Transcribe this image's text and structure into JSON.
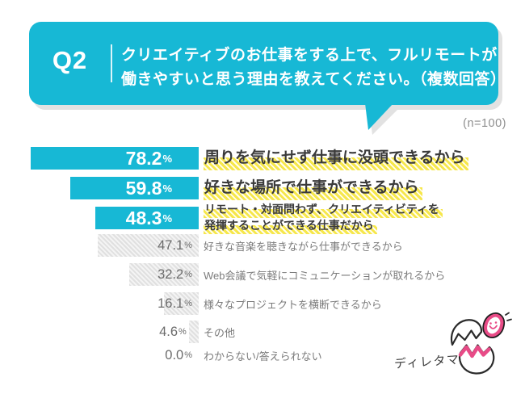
{
  "header": {
    "badge": "Q2",
    "question_line1": "クリエイティブのお仕事をする上で、フルリモートが",
    "question_line2": "働きやすいと思う理由を教えてください。（複数回答）",
    "sample_size": "(n=100)"
  },
  "chart_data": {
    "type": "bar",
    "orientation": "horizontal",
    "value_unit": "%",
    "axis_range": [
      0,
      100
    ],
    "grid": false,
    "legend": false,
    "title": "クリエイティブのお仕事をする上で、フルリモートが働きやすいと思う理由を教えてください。（複数回答）",
    "categories": [
      "周りを気にせず仕事に没頭できるから",
      "好きな場所で仕事ができるから",
      "リモート・対面問わず、クリエイティビティを発揮することができる仕事だから",
      "好きな音楽を聴きながら仕事ができるから",
      "Web会議で気軽にコミュニケーションが取れるから",
      "様々なプロジェクトを横断できるから",
      "その他",
      "わからない/答えられない"
    ],
    "values": [
      78.2,
      59.8,
      48.3,
      47.1,
      32.2,
      16.1,
      4.6,
      0.0
    ],
    "emphasized": [
      true,
      true,
      true,
      false,
      false,
      false,
      false,
      false
    ],
    "rows": [
      {
        "pct": "78.2",
        "value": 78.2,
        "emph": true,
        "lines": [
          "周りを気にせず仕事に没頭できるから"
        ]
      },
      {
        "pct": "59.8",
        "value": 59.8,
        "emph": true,
        "lines": [
          "好きな場所で仕事ができるから"
        ]
      },
      {
        "pct": "48.3",
        "value": 48.3,
        "emph": true,
        "lines": [
          "リモート・対面問わず、クリエイティビティを",
          "発揮することができる仕事だから"
        ]
      },
      {
        "pct": "47.1",
        "value": 47.1,
        "emph": false,
        "lines": [
          "好きな音楽を聴きながら仕事ができるから"
        ]
      },
      {
        "pct": "32.2",
        "value": 32.2,
        "emph": false,
        "lines": [
          "Web会議で気軽にコミュニケーションが取れるから"
        ]
      },
      {
        "pct": "16.1",
        "value": 16.1,
        "emph": false,
        "lines": [
          "様々なプロジェクトを横断できるから"
        ]
      },
      {
        "pct": "4.6",
        "value": 4.6,
        "emph": false,
        "lines": [
          "その他"
        ]
      },
      {
        "pct": "0.0",
        "value": 0.0,
        "emph": false,
        "lines": [
          "わからない/答えられない"
        ]
      }
    ],
    "colors": {
      "bar_accent": "#17b8d5",
      "bar_muted_hatch": "#e0e0e0",
      "label_highlight": "#f6e74b",
      "mascot_pink": "#e84b87"
    }
  },
  "mascot": {
    "brand": "ディレタマ"
  }
}
